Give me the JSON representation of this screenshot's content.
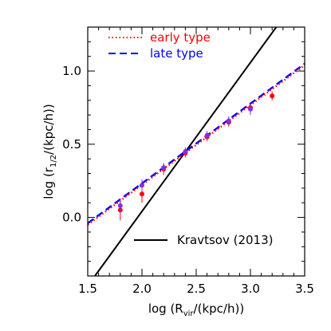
{
  "chart_data": {
    "type": "line",
    "title": "",
    "xlabel": {
      "pre": "log (R",
      "sub": "vir",
      "post": "/(kpc/h))"
    },
    "ylabel": {
      "pre": "log (r",
      "sub": "1/2",
      "post": "/(kpc/h))"
    },
    "xlim": [
      1.5,
      3.5
    ],
    "ylim": [
      -0.4,
      1.3
    ],
    "xticks": [
      1.5,
      2.0,
      2.5,
      3.0,
      3.5
    ],
    "xtick_labels": [
      "1.5",
      "2.0",
      "2.5",
      "3.0",
      "3.5"
    ],
    "yticks": [
      0.0,
      0.5,
      1.0
    ],
    "ytick_labels": [
      "0.0",
      "0.5",
      "1.0"
    ],
    "grid": false,
    "series": [
      {
        "name": "early type",
        "style": "dotted",
        "color": "#ff0000",
        "fit_line": {
          "x": [
            1.5,
            3.5
          ],
          "y": [
            -0.05,
            1.04
          ]
        },
        "points": [
          {
            "x": 1.8,
            "y": 0.05,
            "err": 0.07
          },
          {
            "x": 2.0,
            "y": 0.16,
            "err": 0.06
          },
          {
            "x": 2.2,
            "y": 0.33,
            "err": 0.04
          },
          {
            "x": 2.4,
            "y": 0.44,
            "err": 0.03
          },
          {
            "x": 2.6,
            "y": 0.55,
            "err": 0.03
          },
          {
            "x": 2.8,
            "y": 0.65,
            "err": 0.03
          },
          {
            "x": 3.0,
            "y": 0.75,
            "err": 0.03
          },
          {
            "x": 3.2,
            "y": 0.83,
            "err": 0.03
          }
        ]
      },
      {
        "name": "late type",
        "style": "dashed",
        "color": "#0000ff",
        "marker_color": "#8a2be2",
        "fit_line": {
          "x": [
            1.5,
            3.5
          ],
          "y": [
            -0.04,
            1.05
          ]
        },
        "points": [
          {
            "x": 1.8,
            "y": 0.08,
            "err": 0.05
          },
          {
            "x": 2.0,
            "y": 0.22,
            "err": 0.04
          },
          {
            "x": 2.2,
            "y": 0.34,
            "err": 0.03
          },
          {
            "x": 2.4,
            "y": 0.45,
            "err": 0.03
          },
          {
            "x": 2.6,
            "y": 0.56,
            "err": 0.03
          },
          {
            "x": 2.8,
            "y": 0.66,
            "err": 0.03
          },
          {
            "x": 3.0,
            "y": 0.74,
            "err": 0.04
          }
        ]
      },
      {
        "name": "Kravtsov (2013)",
        "style": "solid",
        "color": "#000000",
        "fit_line": {
          "x": [
            1.566,
            3.238
          ],
          "y": [
            -0.4,
            1.3
          ]
        }
      }
    ],
    "legend": {
      "top_position": "top-left",
      "bottom_position": "bottom-right"
    }
  }
}
